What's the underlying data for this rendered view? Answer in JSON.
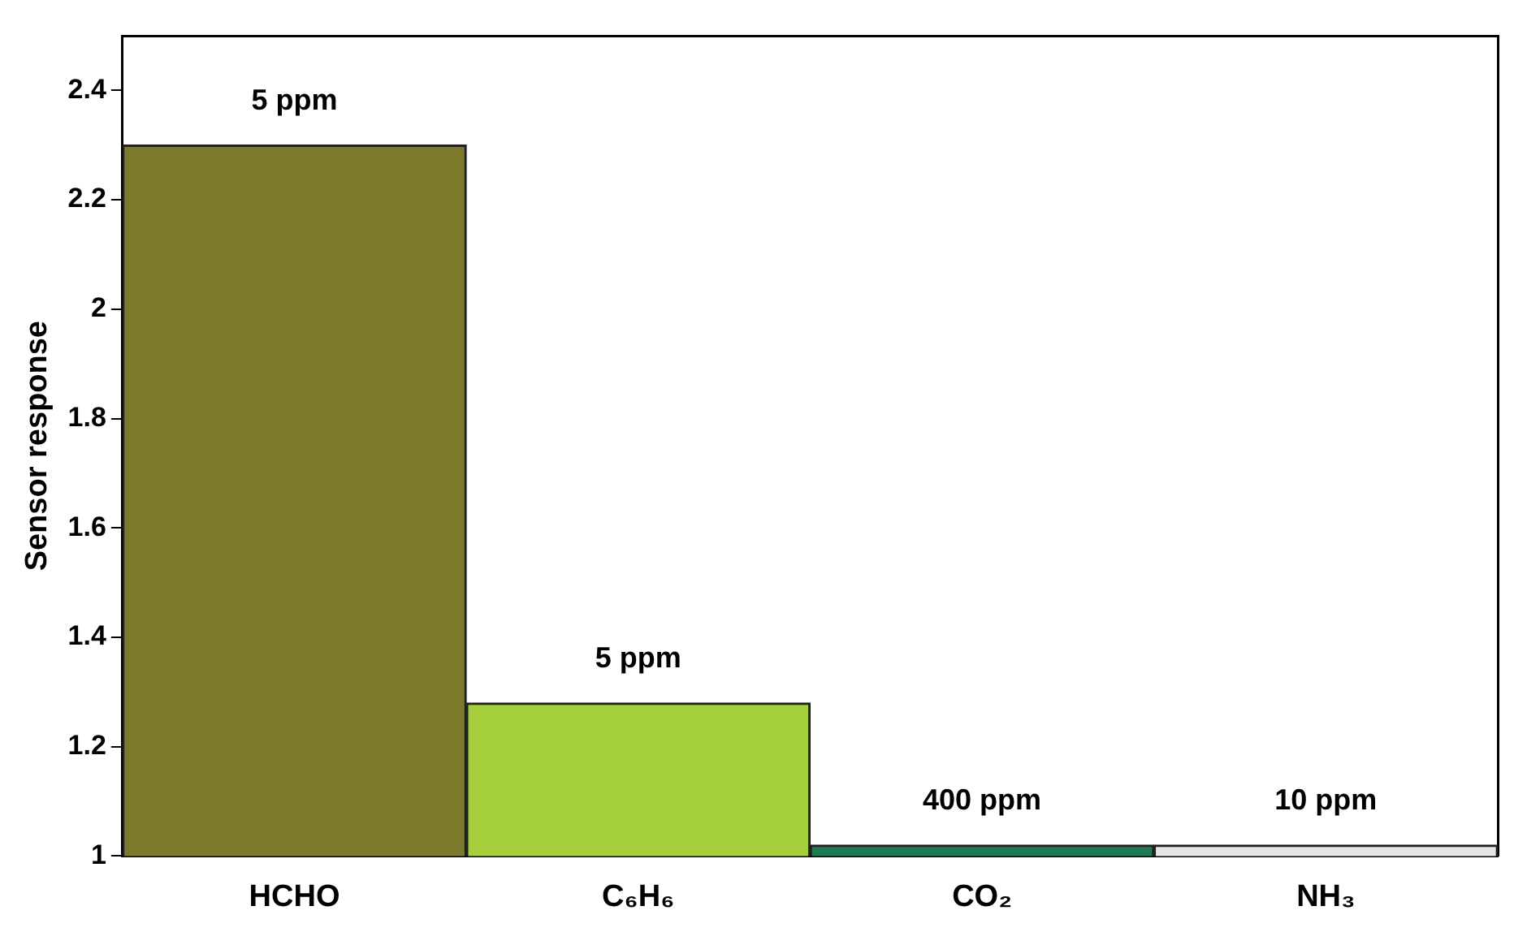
{
  "chart_data": {
    "type": "bar",
    "ylabel": "Sensor response",
    "categories": [
      "HCHO",
      "C₆H₆",
      "CO₂",
      "NH₃"
    ],
    "values": [
      2.3,
      1.28,
      1.02,
      1.02
    ],
    "colors": [
      "#7d7a2e",
      "#a6cf3c",
      "#1f7a55",
      "#e6e6e6"
    ],
    "ylim": [
      1,
      2.5
    ],
    "yticks": [
      1,
      1.2,
      1.4,
      1.6,
      1.8,
      2,
      2.2,
      2.4
    ],
    "grid": false,
    "legend": false,
    "annotations": [
      {
        "text": "5 ppm",
        "x": "HCHO",
        "y": 2.3
      },
      {
        "text": "5 ppm",
        "x": "C₆H₆",
        "y": 1.28
      },
      {
        "text": "400 ppm",
        "x": "CO₂",
        "y": 1.02
      },
      {
        "text": "10 ppm",
        "x": "NH₃",
        "y": 1.02
      }
    ]
  }
}
